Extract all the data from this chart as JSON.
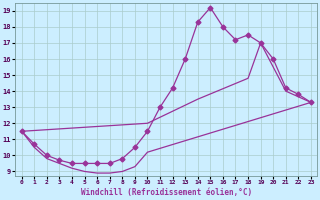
{
  "title": "",
  "xlabel": "Windchill (Refroidissement éolien,°C)",
  "ylabel": "",
  "bg_color": "#cceeff",
  "grid_color": "#aacccc",
  "line_color": "#993399",
  "marker": "D",
  "markersize": 2.5,
  "linewidth": 0.9,
  "xlim": [
    -0.5,
    23.5
  ],
  "ylim": [
    8.7,
    19.5
  ],
  "xticks": [
    0,
    1,
    2,
    3,
    4,
    5,
    6,
    7,
    8,
    9,
    10,
    11,
    12,
    13,
    14,
    15,
    16,
    17,
    18,
    19,
    20,
    21,
    22,
    23
  ],
  "yticks": [
    9,
    10,
    11,
    12,
    13,
    14,
    15,
    16,
    17,
    18,
    19
  ],
  "curve1_x": [
    0,
    1,
    2,
    3,
    4,
    5,
    6,
    7,
    8,
    9,
    10,
    11,
    12,
    13,
    14,
    15,
    16,
    17,
    18,
    19,
    20,
    21,
    22,
    23
  ],
  "curve1_y": [
    11.5,
    10.7,
    10.0,
    9.7,
    9.5,
    9.5,
    9.5,
    9.5,
    9.8,
    10.5,
    11.5,
    13.0,
    14.2,
    16.0,
    18.3,
    19.2,
    18.0,
    17.2,
    17.5,
    17.0,
    16.0,
    14.2,
    13.8,
    13.3
  ],
  "curve2_x": [
    0,
    10,
    14,
    18,
    19,
    21,
    23
  ],
  "curve2_y": [
    11.5,
    12.0,
    13.5,
    14.8,
    17.0,
    14.0,
    13.3
  ],
  "curve3_x": [
    0,
    1,
    2,
    3,
    4,
    5,
    6,
    7,
    8,
    9,
    10,
    23
  ],
  "curve3_y": [
    11.5,
    10.5,
    9.8,
    9.5,
    9.2,
    9.0,
    8.9,
    8.9,
    9.0,
    9.3,
    10.2,
    13.3
  ]
}
